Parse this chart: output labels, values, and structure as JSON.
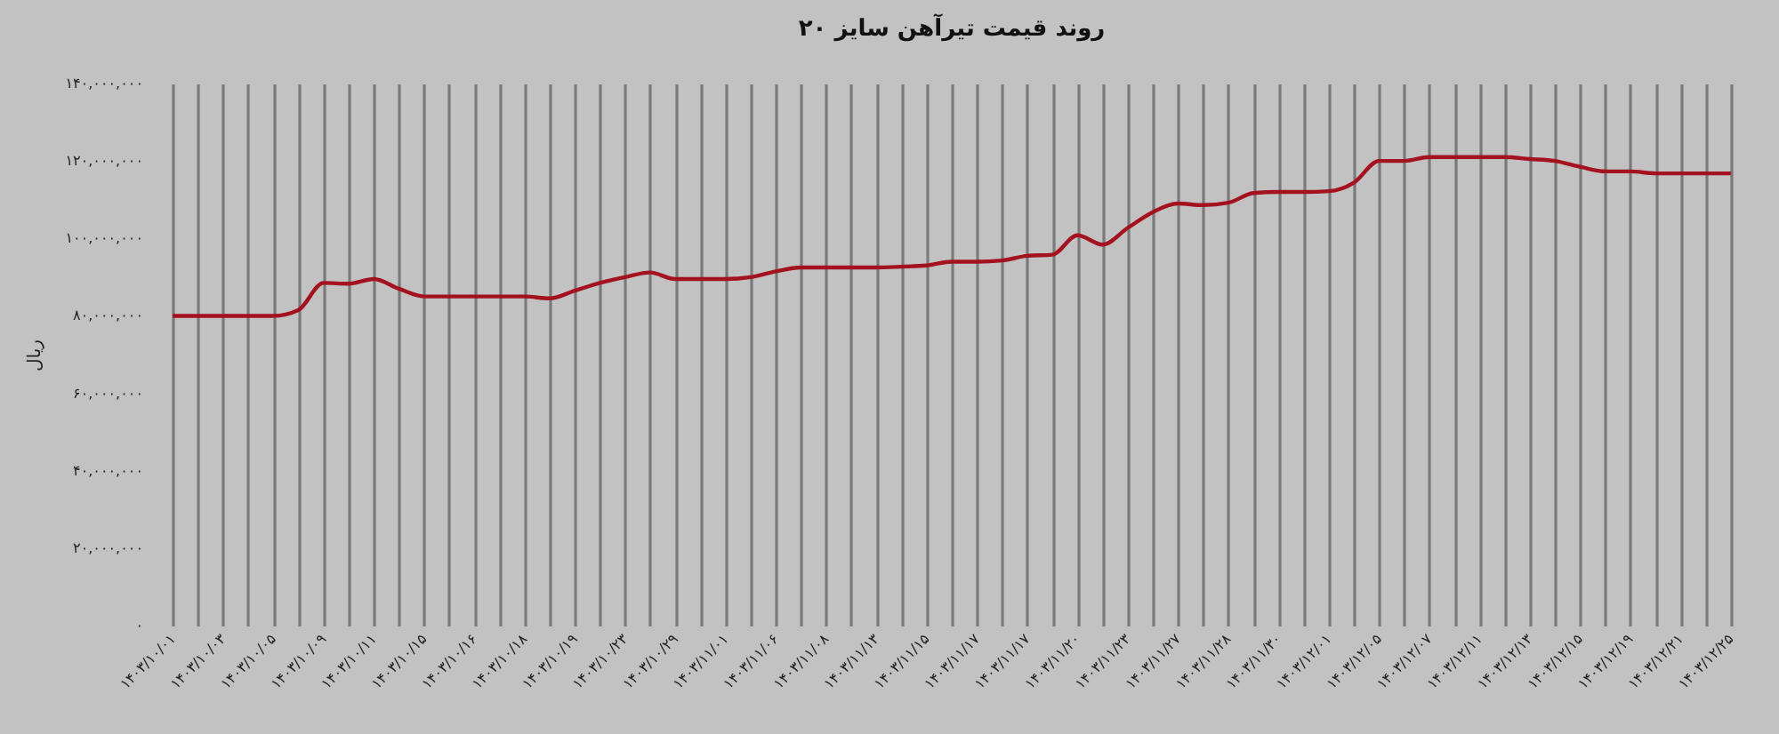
{
  "chart_data": {
    "type": "line",
    "title": "روند قیمت تیرآهن سایز ۲۰",
    "ylabel": "ریال",
    "categories": [
      "۱۴۰۳/۱۰/۰۱",
      null,
      "۱۴۰۳/۱۰/۰۳",
      null,
      "۱۴۰۳/۱۰/۰۵",
      null,
      "۱۴۰۳/۱۰/۰۹",
      null,
      "۱۴۰۳/۱۰/۱۱",
      null,
      "۱۴۰۳/۱۰/۱۵",
      null,
      "۱۴۰۳/۱۰/۱۶",
      null,
      "۱۴۰۳/۱۰/۱۸",
      null,
      "۱۴۰۳/۱۰/۱۹",
      null,
      "۱۴۰۳/۱۰/۲۳",
      null,
      "۱۴۰۳/۱۰/۲۹",
      null,
      "۱۴۰۳/۱۱/۰۱",
      null,
      "۱۴۰۳/۱۱/۰۶",
      null,
      "۱۴۰۳/۱۱/۰۸",
      null,
      "۱۴۰۳/۱۱/۱۳",
      null,
      "۱۴۰۳/۱۱/۱۵",
      null,
      "۱۴۰۳/۱۱/۱۷",
      null,
      "۱۴۰۳/۱۱/۱۷",
      null,
      "۱۴۰۳/۱۱/۲۰",
      null,
      "۱۴۰۳/۱۱/۲۳",
      null,
      "۱۴۰۳/۱۱/۲۷",
      null,
      "۱۴۰۳/۱۱/۲۸",
      null,
      "۱۴۰۳/۱۱/۳۰",
      null,
      "۱۴۰۳/۱۲/۰۱",
      null,
      "۱۴۰۳/۱۲/۰۵",
      null,
      "۱۴۰۳/۱۲/۰۷",
      null,
      "۱۴۰۳/۱۲/۱۱",
      null,
      "۱۴۰۳/۱۲/۱۳",
      null,
      "۱۴۰۳/۱۲/۱۵",
      null,
      "۱۴۰۳/۱۲/۱۹",
      null,
      "۱۴۰۳/۱۲/۲۱",
      null,
      "۱۴۰۳/۱۲/۲۵"
    ],
    "series": [
      {
        "color": "#a3121e",
        "values": [
          80000000,
          80000000,
          80000000,
          80000000,
          80000000,
          81500000,
          88500000,
          88300000,
          89500000,
          87000000,
          85000000,
          85000000,
          85000000,
          85000000,
          85000000,
          84500000,
          86500000,
          88500000,
          90000000,
          91200000,
          89500000,
          89500000,
          89500000,
          90000000,
          91500000,
          92500000,
          92500000,
          92500000,
          92500000,
          92700000,
          93000000,
          94000000,
          94000000,
          94300000,
          95500000,
          95800000,
          100800000,
          98400000,
          102700000,
          106800000,
          109000000,
          108600000,
          109200000,
          111700000,
          112000000,
          112000000,
          112200000,
          114400000,
          120000000,
          120000000,
          121000000,
          121000000,
          121000000,
          121000000,
          120500000,
          120000000,
          118500000,
          117300000,
          117300000,
          116800000,
          116800000,
          116800000,
          116800000
        ]
      }
    ],
    "ylim": [
      0,
      140000000
    ],
    "yticks": [
      {
        "value": 0,
        "label": "۰"
      },
      {
        "value": 20000000,
        "label": "۲۰,۰۰۰,۰۰۰"
      },
      {
        "value": 40000000,
        "label": "۴۰,۰۰۰,۰۰۰"
      },
      {
        "value": 60000000,
        "label": "۶۰,۰۰۰,۰۰۰"
      },
      {
        "value": 80000000,
        "label": "۸۰,۰۰۰,۰۰۰"
      },
      {
        "value": 100000000,
        "label": "۱۰۰,۰۰۰,۰۰۰"
      },
      {
        "value": 120000000,
        "label": "۱۲۰,۰۰۰,۰۰۰"
      },
      {
        "value": 140000000,
        "label": "۱۴۰,۰۰۰,۰۰۰"
      }
    ],
    "grid": "x",
    "marker": "none",
    "line_style": "solid"
  }
}
